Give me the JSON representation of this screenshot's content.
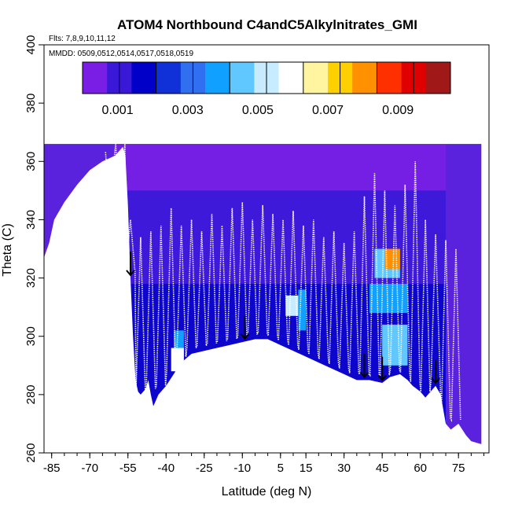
{
  "chart_data": {
    "type": "heatmap",
    "title": "ATOM4 Northbound C4andC5Alkylnitrates_GMI",
    "flights_note": "Flts: 7,8,9,10,11,12",
    "dates_note": "MMDD: 0509,0512,0514,0517,0518,0519",
    "xlabel": "Latitude (deg N)",
    "ylabel": "Theta (C)",
    "xlim": [
      -88,
      87
    ],
    "ylim": [
      260,
      400
    ],
    "x_ticks": [
      -85,
      -70,
      -55,
      -40,
      -25,
      -10,
      5,
      15,
      30,
      45,
      60,
      75
    ],
    "y_ticks": [
      260,
      280,
      300,
      320,
      340,
      360,
      380,
      400
    ],
    "colorbar": {
      "range": [
        0.0,
        0.0105
      ],
      "tick_labels": [
        "0.001",
        "0.003",
        "0.005",
        "0.007",
        "0.009"
      ],
      "tick_values": [
        0.001,
        0.003,
        0.005,
        0.007,
        0.009
      ],
      "colors": [
        "#7a1ee6",
        "#3a18d8",
        "#0000c8",
        "#1030d8",
        "#3070f0",
        "#10a0ff",
        "#60c8ff",
        "#c8ecff",
        "#ffffff",
        "#fff4a0",
        "#ffd000",
        "#ff9000",
        "#ff3000",
        "#e00000",
        "#a01818"
      ]
    },
    "surface_boundary": [
      [
        -88,
        327
      ],
      [
        -86,
        332
      ],
      [
        -84,
        340
      ],
      [
        -80,
        346
      ],
      [
        -75,
        352
      ],
      [
        -70,
        357
      ],
      [
        -65,
        360
      ],
      [
        -60,
        362
      ],
      [
        -57,
        365
      ],
      [
        -56,
        362
      ],
      [
        -55,
        345
      ],
      [
        -54,
        320
      ],
      [
        -53,
        300
      ],
      [
        -52,
        285
      ],
      [
        -51,
        281
      ],
      [
        -50,
        280
      ],
      [
        -48,
        282
      ],
      [
        -47,
        285
      ],
      [
        -46,
        280
      ],
      [
        -45,
        276
      ],
      [
        -43,
        280
      ],
      [
        -40,
        283
      ],
      [
        -37,
        287
      ],
      [
        -34,
        291
      ],
      [
        -30,
        294
      ],
      [
        -25,
        295
      ],
      [
        -20,
        296
      ],
      [
        -15,
        297
      ],
      [
        -10,
        298
      ],
      [
        -5,
        299
      ],
      [
        0,
        299
      ],
      [
        5,
        297
      ],
      [
        10,
        295
      ],
      [
        15,
        293
      ],
      [
        20,
        291
      ],
      [
        25,
        289
      ],
      [
        30,
        287
      ],
      [
        35,
        285
      ],
      [
        40,
        285
      ],
      [
        45,
        284
      ],
      [
        48,
        286
      ],
      [
        52,
        287
      ],
      [
        55,
        285
      ],
      [
        57,
        283
      ],
      [
        60,
        281
      ],
      [
        62,
        279
      ],
      [
        64,
        281
      ],
      [
        66,
        283
      ],
      [
        68,
        280
      ],
      [
        70,
        270
      ],
      [
        72,
        268
      ],
      [
        75,
        270
      ],
      [
        78,
        266
      ],
      [
        80,
        264
      ],
      [
        84,
        263
      ],
      [
        87,
        262
      ]
    ],
    "high_regions": [
      {
        "lat": [
          -37,
          -33
        ],
        "theta": [
          293,
          302
        ],
        "value": 0.004
      },
      {
        "lat": [
          -38,
          -33
        ],
        "theta": [
          288,
          296
        ],
        "value": 0.006
      },
      {
        "lat": [
          7,
          12
        ],
        "theta": [
          307,
          314
        ],
        "value": 0.005
      },
      {
        "lat": [
          12,
          15
        ],
        "theta": [
          302,
          316
        ],
        "value": 0.0038
      },
      {
        "lat": [
          42,
          52
        ],
        "theta": [
          320,
          330
        ],
        "value": 0.0048
      },
      {
        "lat": [
          46,
          52
        ],
        "theta": [
          323,
          330
        ],
        "value": 0.008
      },
      {
        "lat": [
          40,
          55
        ],
        "theta": [
          308,
          318
        ],
        "value": 0.004
      },
      {
        "lat": [
          45,
          55
        ],
        "theta": [
          290,
          304
        ],
        "value": 0.0046
      }
    ],
    "flight_track_x": [
      -62,
      -58,
      -54,
      -50,
      -46,
      -42,
      -38,
      -34,
      -30,
      -26,
      -22,
      -18,
      -14,
      -10,
      -6,
      -2,
      2,
      6,
      10,
      14,
      18,
      22,
      26,
      30,
      34,
      38,
      42,
      46,
      50,
      54,
      58,
      62,
      66,
      70,
      74
    ],
    "flight_track_top": [
      338,
      332,
      340,
      334,
      336,
      338,
      344,
      338,
      340,
      336,
      342,
      338,
      344,
      346,
      340,
      345,
      342,
      340,
      343,
      338,
      340,
      334,
      336,
      332,
      336,
      348,
      356,
      350,
      345,
      352,
      360,
      340,
      335,
      333,
      330
    ],
    "markers_lat": [
      -54,
      -9,
      38,
      45,
      66
    ]
  }
}
